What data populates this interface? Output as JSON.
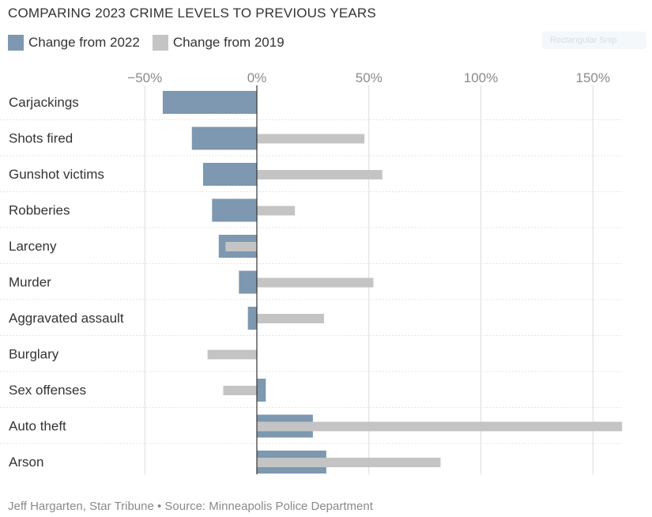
{
  "title": "COMPARING 2023 CRIME LEVELS TO PREVIOUS YEARS",
  "legend": {
    "series_2022": "Change from 2022",
    "series_2019": "Change from 2019"
  },
  "faint_tag": "Rectangular Snip",
  "credit": "Jeff Hargarten, Star Tribune • Source: Minneapolis Police Department",
  "colors": {
    "series_2022": "#7d98b0",
    "series_2019": "#c4c4c4",
    "grid": "#dcdcdc",
    "zero_line": "#333333"
  },
  "chart_data": {
    "type": "bar",
    "orientation": "horizontal",
    "title": "COMPARING 2023 CRIME LEVELS TO PREVIOUS YEARS",
    "xlim": [
      -50,
      163
    ],
    "x_ticks": [
      -50,
      0,
      50,
      100,
      150
    ],
    "x_tick_labels": [
      "−50%",
      "0%",
      "50%",
      "100%",
      "150%"
    ],
    "grid": true,
    "legend_position": "top-left",
    "categories": [
      "Carjackings",
      "Shots fired",
      "Gunshot victims",
      "Robberies",
      "Larceny",
      "Murder",
      "Aggravated assault",
      "Burglary",
      "Sex offenses",
      "Auto theft",
      "Arson"
    ],
    "series": [
      {
        "name": "Change from 2022",
        "values": [
          -42,
          -29,
          -24,
          -20,
          -17,
          -8,
          -4,
          0,
          4,
          25,
          31
        ]
      },
      {
        "name": "Change from 2019",
        "values": [
          0,
          48,
          56,
          17,
          -14,
          52,
          30,
          -22,
          -15,
          163,
          82
        ]
      }
    ]
  }
}
